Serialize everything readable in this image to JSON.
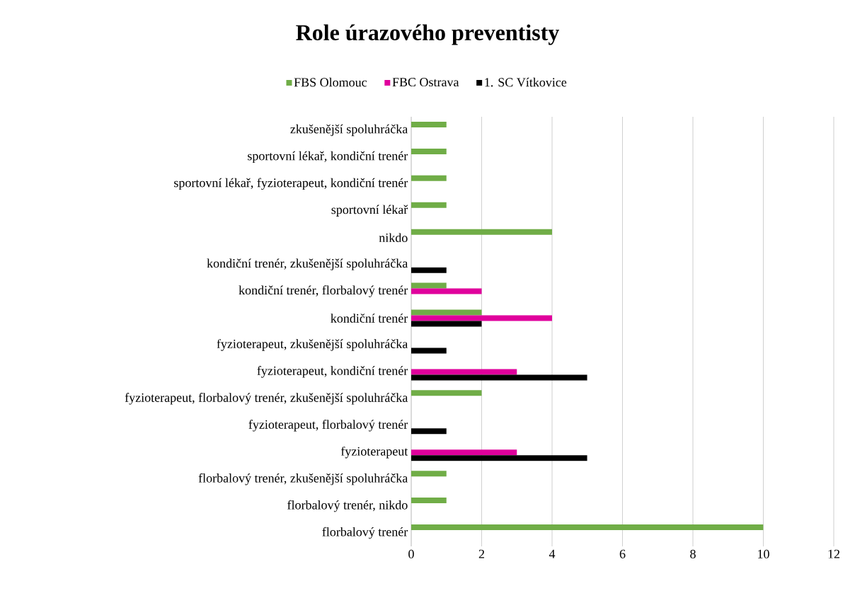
{
  "chart_data": {
    "type": "bar",
    "orientation": "horizontal",
    "title": "Role úrazového preventisty",
    "categories": [
      "zkušenější spoluhráčka",
      "sportovní lékař, kondiční trenér",
      "sportovní lékař, fyzioterapeut, kondiční trenér",
      "sportovní lékař",
      "nikdo",
      "kondiční trenér, zkušenější spoluhráčka",
      "kondiční trenér, florbalový trenér",
      "kondiční trenér",
      "fyzioterapeut, zkušenější spoluhráčka",
      "fyzioterapeut, kondiční trenér",
      "fyzioterapeut, florbalový trenér, zkušenější spoluhráčka",
      "fyzioterapeut, florbalový trenér",
      "fyzioterapeut",
      "florbalový trenér, zkušenější spoluhráčka",
      "florbalový trenér, nikdo",
      "florbalový trenér"
    ],
    "series": [
      {
        "name": "FBS Olomouc",
        "color": "#70ad47",
        "values": [
          1,
          1,
          1,
          1,
          4,
          null,
          1,
          2,
          null,
          null,
          2,
          null,
          null,
          1,
          1,
          10
        ]
      },
      {
        "name": "FBC Ostrava",
        "color": "#e0009c",
        "values": [
          null,
          null,
          null,
          null,
          null,
          null,
          2,
          4,
          null,
          3,
          null,
          null,
          3,
          null,
          null,
          null
        ]
      },
      {
        "name": "1. SC Vítkovice",
        "color": "#000000",
        "values": [
          null,
          null,
          null,
          null,
          null,
          1,
          null,
          2,
          1,
          5,
          null,
          1,
          5,
          null,
          null,
          null
        ]
      }
    ],
    "xlim": [
      0,
      12
    ],
    "xticks": [
      0,
      2,
      4,
      6,
      8,
      10,
      12
    ],
    "grid": "x",
    "legend": "top"
  }
}
